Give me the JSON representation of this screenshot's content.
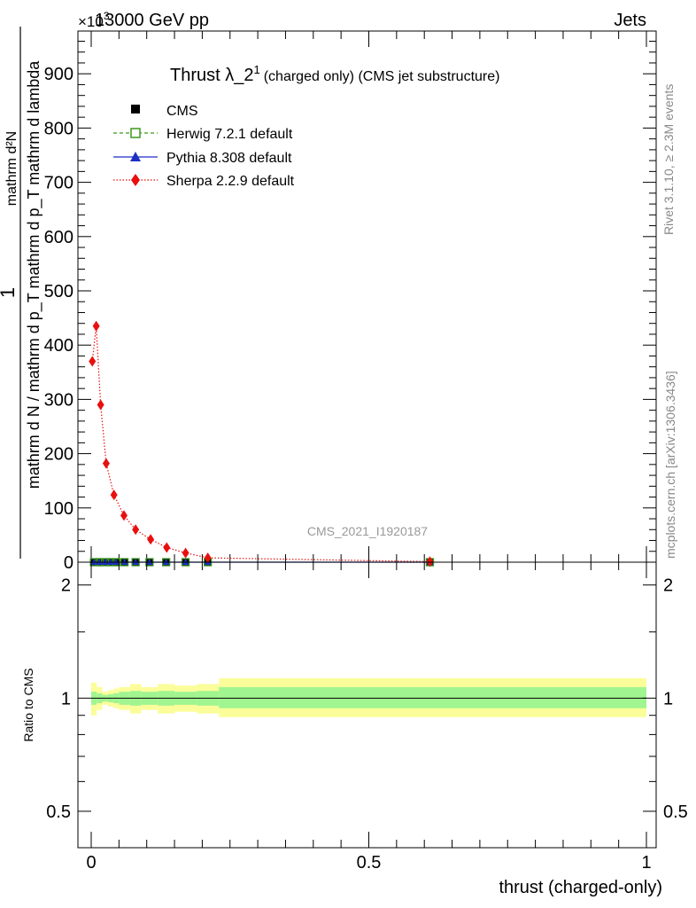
{
  "header": {
    "energy_label": "13000 GeV pp",
    "process_label": "Jets",
    "y_multiplier": "×10",
    "y_multiplier_exp": "3"
  },
  "side_labels": {
    "rivet": "Rivet 3.1.10, ≥ 2.3M events",
    "mcplots": "mcplots.cern.ch [arXiv:1306.3436]"
  },
  "watermark": "CMS_2021_I1920187",
  "colors": {
    "cms": "#000000",
    "herwig": "#3a9a1c",
    "pythia": "#1d2fc4",
    "sherpa": "#e8100f",
    "band_inner": "#a0f590",
    "band_outer": "#fbfd9a"
  },
  "chart_data": {
    "type": "scatter",
    "title": "Thrust λ_2",
    "title_sup": "1",
    "title_suffix": "(charged only) (CMS jet substructure)",
    "xlabel": "thrust (charged-only)",
    "ylabel": {
      "numerator": "1",
      "denominator": "mathrm d N / mathrm d p_T mathrm d p_T mathrm d lambda",
      "top": "mathrm d²N"
    },
    "ratio_ylabel": "Ratio to CMS",
    "xlim": [
      0,
      1
    ],
    "ylim": [
      0,
      980
    ],
    "y_unit_note": "values ×10³",
    "x_ticks": [
      "0",
      "0.5",
      "1"
    ],
    "y_ticks": [
      "0",
      "100",
      "200",
      "300",
      "400",
      "500",
      "600",
      "700",
      "800",
      "900"
    ],
    "ratio_ylim": [
      0.4,
      2.3
    ],
    "ratio_ticks": [
      "0.5",
      "1",
      "2"
    ],
    "legend_position": "top-left",
    "series": [
      {
        "name": "CMS",
        "marker": "filled-square",
        "x": [
          0.005,
          0.015,
          0.025,
          0.035,
          0.045,
          0.06,
          0.08,
          0.105,
          0.135,
          0.17,
          0.21,
          0.61
        ],
        "y": [
          0,
          0,
          0,
          0,
          0,
          0,
          0,
          0,
          0,
          0,
          0,
          0
        ]
      },
      {
        "name": "Herwig 7.2.1 default",
        "marker": "open-square",
        "line": "dashed",
        "x": [
          0.005,
          0.015,
          0.025,
          0.035,
          0.045,
          0.06,
          0.08,
          0.105,
          0.135,
          0.17,
          0.21,
          0.61
        ],
        "y": [
          0,
          0,
          0,
          0,
          0,
          0,
          0,
          0,
          0,
          0,
          0,
          0
        ]
      },
      {
        "name": "Pythia 8.308 default",
        "marker": "triangle",
        "line": "solid",
        "x": [
          0.005,
          0.015,
          0.025,
          0.035,
          0.045,
          0.06,
          0.08,
          0.105,
          0.135,
          0.17,
          0.21,
          0.61
        ],
        "y": [
          0,
          0,
          0,
          0,
          0,
          0,
          0,
          0,
          0,
          0,
          0,
          0
        ]
      },
      {
        "name": "Sherpa 2.2.9 default",
        "marker": "diamond",
        "line": "dotted",
        "x": [
          0.002,
          0.009,
          0.017,
          0.027,
          0.041,
          0.059,
          0.08,
          0.107,
          0.136,
          0.17,
          0.21,
          0.61
        ],
        "y": [
          370,
          435,
          290,
          182,
          124,
          86,
          60,
          42,
          27,
          17,
          8,
          1
        ]
      }
    ],
    "ratio_bands": [
      {
        "x0": 0.0,
        "x1": 0.01,
        "inner": [
          0.96,
          1.04
        ],
        "outer": [
          0.9,
          1.1
        ]
      },
      {
        "x0": 0.01,
        "x1": 0.02,
        "inner": [
          0.97,
          1.03
        ],
        "outer": [
          0.93,
          1.07
        ]
      },
      {
        "x0": 0.02,
        "x1": 0.03,
        "inner": [
          0.98,
          1.02
        ],
        "outer": [
          0.96,
          1.04
        ]
      },
      {
        "x0": 0.03,
        "x1": 0.04,
        "inner": [
          0.975,
          1.025
        ],
        "outer": [
          0.95,
          1.05
        ]
      },
      {
        "x0": 0.04,
        "x1": 0.05,
        "inner": [
          0.97,
          1.03
        ],
        "outer": [
          0.94,
          1.06
        ]
      },
      {
        "x0": 0.05,
        "x1": 0.07,
        "inner": [
          0.96,
          1.04
        ],
        "outer": [
          0.93,
          1.07
        ]
      },
      {
        "x0": 0.07,
        "x1": 0.09,
        "inner": [
          0.955,
          1.045
        ],
        "outer": [
          0.91,
          1.09
        ]
      },
      {
        "x0": 0.09,
        "x1": 0.12,
        "inner": [
          0.96,
          1.04
        ],
        "outer": [
          0.93,
          1.07
        ]
      },
      {
        "x0": 0.12,
        "x1": 0.15,
        "inner": [
          0.955,
          1.045
        ],
        "outer": [
          0.91,
          1.09
        ]
      },
      {
        "x0": 0.15,
        "x1": 0.19,
        "inner": [
          0.96,
          1.04
        ],
        "outer": [
          0.92,
          1.08
        ]
      },
      {
        "x0": 0.19,
        "x1": 0.23,
        "inner": [
          0.955,
          1.045
        ],
        "outer": [
          0.91,
          1.09
        ]
      },
      {
        "x0": 0.23,
        "x1": 1.0,
        "inner": [
          0.94,
          1.07
        ],
        "outer": [
          0.89,
          1.13
        ]
      }
    ],
    "ratio_line": 1
  }
}
